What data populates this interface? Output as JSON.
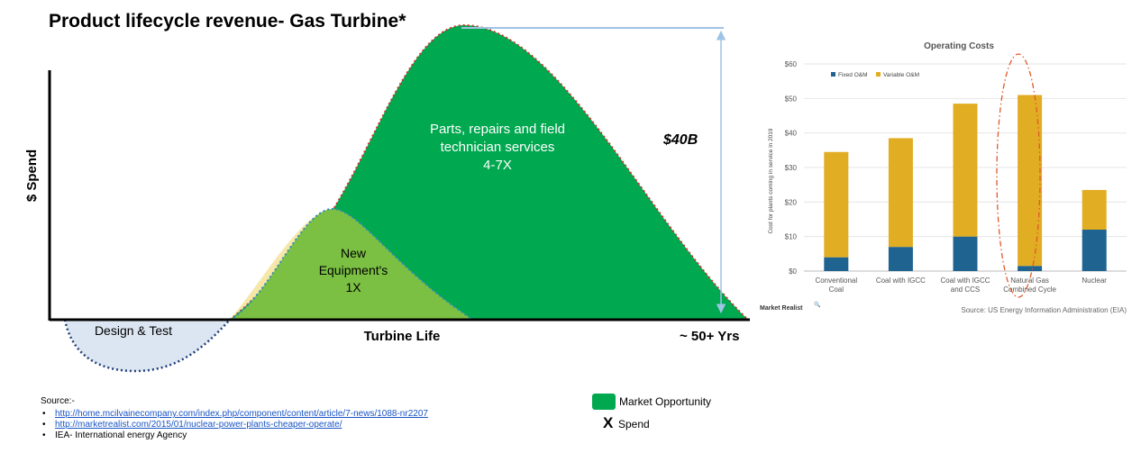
{
  "main": {
    "title": "Product lifecycle revenue- Gas Turbine*",
    "y_axis_label": "$ Spend",
    "x_axis_label": "Turbine Life",
    "x_axis_end_label": "~ 50+ Yrs",
    "phase_design": "Design & Test",
    "phase_new_equipment": [
      "New",
      "Equipment's",
      "1X"
    ],
    "phase_services": [
      "Parts, repairs and field",
      "technician services",
      "4-7X"
    ],
    "gap_label": "$40B"
  },
  "legend": {
    "market_opportunity": "Market Opportunity",
    "spend_mark": "X",
    "spend": "Spend",
    "market_color": "#00a84f"
  },
  "sources": {
    "title": "Source:-",
    "items": [
      "http://home.mcilvainecompany.com/index.php/component/content/article/7-news/1088-nr2207",
      "http://marketrealist.com/2015/01/nuclear-power-plants-cheaper-operate/",
      "IEA- International energy Agency"
    ]
  },
  "chart_data": [
    {
      "type": "area",
      "title": "Product lifecycle revenue- Gas Turbine*",
      "xlabel": "Turbine Life",
      "ylabel": "$ Spend",
      "series": [
        {
          "name": "Design & Test",
          "multiple": "",
          "color": "#dce6f2"
        },
        {
          "name": "New Equipment's",
          "multiple": "1X",
          "color": "#7bc043"
        },
        {
          "name": "Parts, repairs and field technician services",
          "multiple": "4-7X",
          "color": "#00a84f"
        }
      ],
      "annotation": "$40B",
      "grid": false
    },
    {
      "type": "bar",
      "stacked": true,
      "title": "Operating Costs",
      "ylabel": "Cost for plants coming in service in 2019",
      "categories": [
        [
          "Conventional",
          "Coal"
        ],
        [
          "Coal with IGCC"
        ],
        [
          "Coal with IGCC",
          "and CCS"
        ],
        [
          "Natural Gas",
          "Combined Cycle"
        ],
        [
          "Nuclear"
        ]
      ],
      "series": [
        {
          "name": "Fixed O&M",
          "color": "#1f6391",
          "values": [
            4,
            7,
            10,
            1.5,
            12
          ]
        },
        {
          "name": "Variable O&M",
          "color": "#e1ad23",
          "values": [
            30.5,
            31.5,
            38.5,
            49.5,
            11.5
          ]
        }
      ],
      "ylim": [
        0,
        60
      ],
      "yticks": [
        "$0",
        "$10",
        "$20",
        "$30",
        "$40",
        "$50",
        "$60"
      ],
      "grid": true,
      "legend": "top-left",
      "highlight": "Natural Gas Combined Cycle",
      "brand": "Market Realist",
      "source": "Source: US Energy Information Administration (EIA)"
    }
  ]
}
